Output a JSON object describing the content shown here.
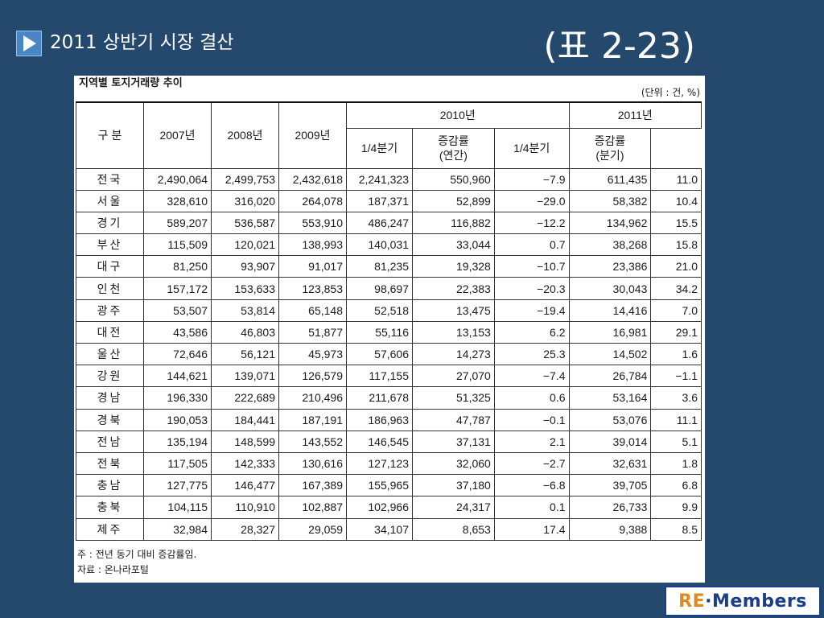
{
  "slide": {
    "title": "2011 상반기 시장 결산",
    "table_label": "(표 2-23)"
  },
  "panel": {
    "title": "지역별 토지거래량 추이",
    "unit": "(단위 : 건, %)",
    "headers": {
      "category": "구 분",
      "y2007": "2007년",
      "y2008": "2008년",
      "y2009": "2009년",
      "y2010": "2010년",
      "y2011": "2011년",
      "q1_2010": "1/4분기",
      "rate_2010": "증감률\n(연간)",
      "q1_2011": "1/4분기",
      "rate_2011": "증감률\n(분기)"
    },
    "rows": [
      [
        "전국",
        "2,490,064",
        "2,499,753",
        "2,432,618",
        "2,241,323",
        "550,960",
        "−7.9",
        "611,435",
        "11.0"
      ],
      [
        "서울",
        "328,610",
        "316,020",
        "264,078",
        "187,371",
        "52,899",
        "−29.0",
        "58,382",
        "10.4"
      ],
      [
        "경기",
        "589,207",
        "536,587",
        "553,910",
        "486,247",
        "116,882",
        "−12.2",
        "134,962",
        "15.5"
      ],
      [
        "부산",
        "115,509",
        "120,021",
        "138,993",
        "140,031",
        "33,044",
        "0.7",
        "38,268",
        "15.8"
      ],
      [
        "대구",
        "81,250",
        "93,907",
        "91,017",
        "81,235",
        "19,328",
        "−10.7",
        "23,386",
        "21.0"
      ],
      [
        "인천",
        "157,172",
        "153,633",
        "123,853",
        "98,697",
        "22,383",
        "−20.3",
        "30,043",
        "34.2"
      ],
      [
        "광주",
        "53,507",
        "53,814",
        "65,148",
        "52,518",
        "13,475",
        "−19.4",
        "14,416",
        "7.0"
      ],
      [
        "대전",
        "43,586",
        "46,803",
        "51,877",
        "55,116",
        "13,153",
        "6.2",
        "16,981",
        "29.1"
      ],
      [
        "울산",
        "72,646",
        "56,121",
        "45,973",
        "57,606",
        "14,273",
        "25.3",
        "14,502",
        "1.6"
      ],
      [
        "강원",
        "144,621",
        "139,071",
        "126,579",
        "117,155",
        "27,070",
        "−7.4",
        "26,784",
        "−1.1"
      ],
      [
        "경남",
        "196,330",
        "222,689",
        "210,496",
        "211,678",
        "51,325",
        "0.6",
        "53,164",
        "3.6"
      ],
      [
        "경북",
        "190,053",
        "184,441",
        "187,191",
        "186,963",
        "47,787",
        "−0.1",
        "53,076",
        "11.1"
      ],
      [
        "전남",
        "135,194",
        "148,599",
        "143,552",
        "146,545",
        "37,131",
        "2.1",
        "39,014",
        "5.1"
      ],
      [
        "전북",
        "117,505",
        "142,333",
        "130,616",
        "127,123",
        "32,060",
        "−2.7",
        "32,631",
        "1.8"
      ],
      [
        "충남",
        "127,775",
        "146,477",
        "167,389",
        "155,965",
        "37,180",
        "−6.8",
        "39,705",
        "6.8"
      ],
      [
        "충북",
        "104,115",
        "110,910",
        "102,887",
        "102,966",
        "24,317",
        "0.1",
        "26,733",
        "9.9"
      ],
      [
        "제주",
        "32,984",
        "28,327",
        "29,059",
        "34,107",
        "8,653",
        "17.4",
        "9,388",
        "8.5"
      ]
    ],
    "note": "주 : 전년 동기 대비 증감률임.",
    "source": "자료 : 온나라포털"
  },
  "logo": {
    "prefix": "RE",
    "dot": "·",
    "suffix": "Members"
  }
}
